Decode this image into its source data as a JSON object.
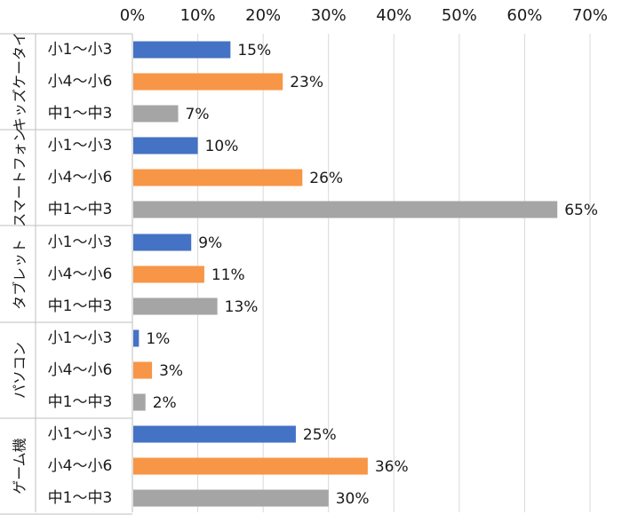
{
  "chart_data": {
    "type": "bar",
    "orientation": "horizontal",
    "grid": true,
    "xlim": [
      0,
      70
    ],
    "x_ticks": [
      "0%",
      "10%",
      "20%",
      "30%",
      "40%",
      "50%",
      "60%",
      "70%"
    ],
    "value_suffix": "%",
    "subcategories": [
      "小1～小3",
      "小4～小6",
      "中1～中3"
    ],
    "series_colors": [
      "#4472c4",
      "#f79646",
      "#a5a5a5"
    ],
    "groups": [
      {
        "name": "キッズケータイ",
        "values": [
          15,
          23,
          7
        ]
      },
      {
        "name": "スマートフォン",
        "values": [
          10,
          26,
          65
        ]
      },
      {
        "name": "タブレット",
        "values": [
          9,
          11,
          13
        ]
      },
      {
        "name": "パソコン",
        "values": [
          1,
          3,
          2
        ]
      },
      {
        "name": "ゲーム機",
        "values": [
          25,
          36,
          30
        ]
      }
    ]
  }
}
